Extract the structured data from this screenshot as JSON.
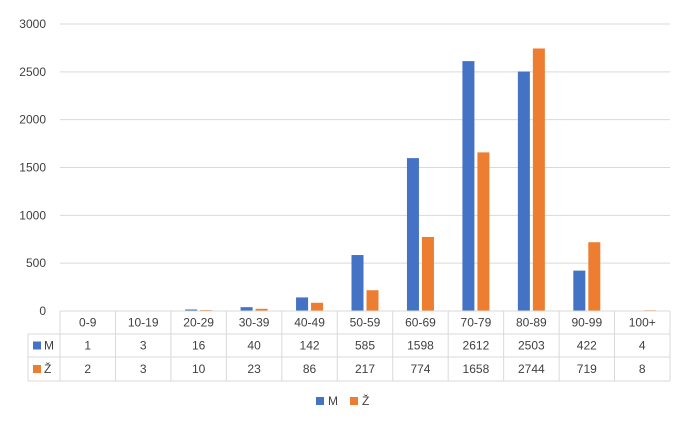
{
  "chart_data": {
    "type": "bar",
    "categories": [
      "0-9",
      "10-19",
      "20-29",
      "30-39",
      "40-49",
      "50-59",
      "60-69",
      "70-79",
      "80-89",
      "90-99",
      "100+"
    ],
    "series": [
      {
        "name": "M",
        "color": "#4472c4",
        "values": [
          1,
          3,
          16,
          40,
          142,
          585,
          1598,
          2612,
          2503,
          422,
          4
        ]
      },
      {
        "name": "Ž",
        "color": "#ed7d31",
        "values": [
          2,
          3,
          10,
          23,
          86,
          217,
          774,
          1658,
          2744,
          719,
          8
        ]
      }
    ],
    "ylim": [
      0,
      3000
    ],
    "yticks": [
      "0",
      "500",
      "1000",
      "1500",
      "2000",
      "2500",
      "3000"
    ],
    "grid": true,
    "data_table": true,
    "legend_position": "bottom"
  }
}
